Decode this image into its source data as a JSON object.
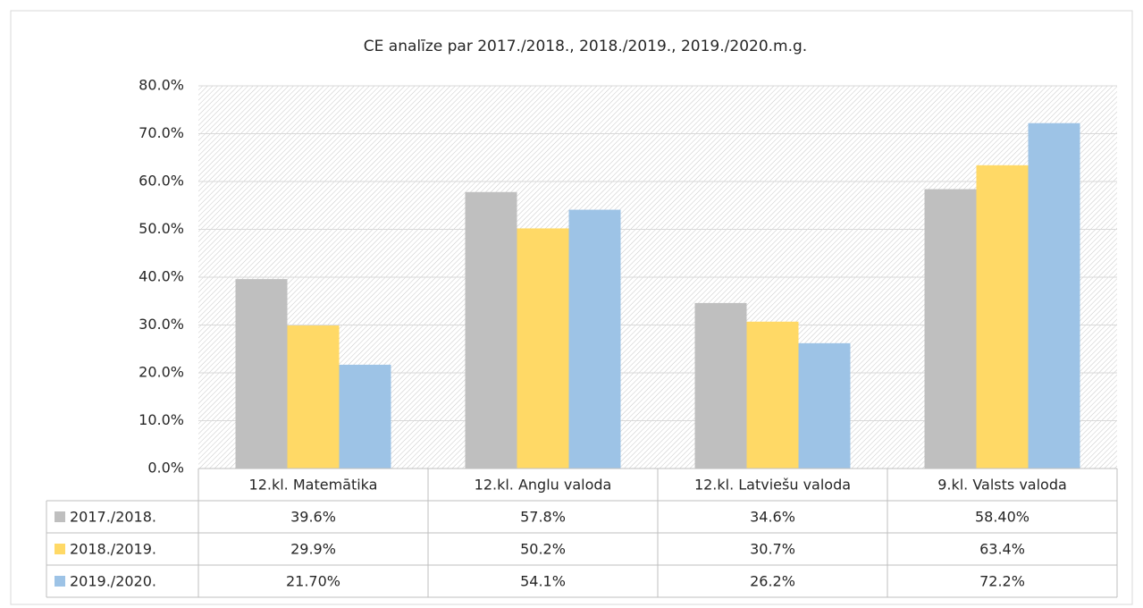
{
  "chart_data": {
    "type": "bar",
    "title": "CE analīze par 2017./2018., 2018./2019., 2019./2020.m.g.",
    "categories": [
      "12.kl. Matemātika",
      "12.kl. Anglu valoda",
      "12.kl. Latviešu valoda",
      "9.kl. Valsts valoda"
    ],
    "series": [
      {
        "name": "2017./2018.",
        "color": "#bfbfbf",
        "values": [
          39.6,
          57.8,
          34.6,
          58.4
        ],
        "value_labels": [
          "39.6%",
          "57.8%",
          "34.6%",
          "58.40%"
        ]
      },
      {
        "name": "2018./2019.",
        "color": "#ffd966",
        "values": [
          29.9,
          50.2,
          30.7,
          63.4
        ],
        "value_labels": [
          "29.9%",
          "50.2%",
          "30.7%",
          "63.4%"
        ]
      },
      {
        "name": "2019./2020.",
        "color": "#9dc3e6",
        "values": [
          21.7,
          54.1,
          26.2,
          72.2
        ],
        "value_labels": [
          "21.70%",
          "54.1%",
          "26.2%",
          "72.2%"
        ]
      }
    ],
    "ylim": [
      0,
      80
    ],
    "yticks": [
      {
        "value": 0,
        "label": "0.0%"
      },
      {
        "value": 10,
        "label": "10.0%"
      },
      {
        "value": 20,
        "label": "20.0%"
      },
      {
        "value": 30,
        "label": "30.0%"
      },
      {
        "value": 40,
        "label": "40.0%"
      },
      {
        "value": 50,
        "label": "50.0%"
      },
      {
        "value": 60,
        "label": "60.0%"
      },
      {
        "value": 70,
        "label": "70.0%"
      },
      {
        "value": 80,
        "label": "80.0%"
      }
    ],
    "grid": true
  }
}
